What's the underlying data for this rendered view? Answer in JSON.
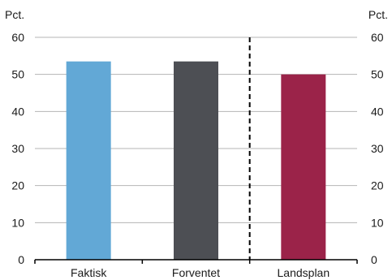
{
  "chart_data": {
    "type": "bar",
    "categories": [
      "Faktisk",
      "Forventet",
      "Landsplan"
    ],
    "values": [
      53.5,
      53.5,
      50.0
    ],
    "colors": [
      "#62a8d6",
      "#4d4f54",
      "#9b2349"
    ],
    "ylim": [
      0,
      60
    ],
    "yticks": [
      0,
      10,
      20,
      30,
      40,
      50,
      60
    ],
    "ylabel_left": "Pct.",
    "ylabel_right": "Pct.",
    "grid": true,
    "divider_between": [
      "Forventet",
      "Landsplan"
    ]
  }
}
